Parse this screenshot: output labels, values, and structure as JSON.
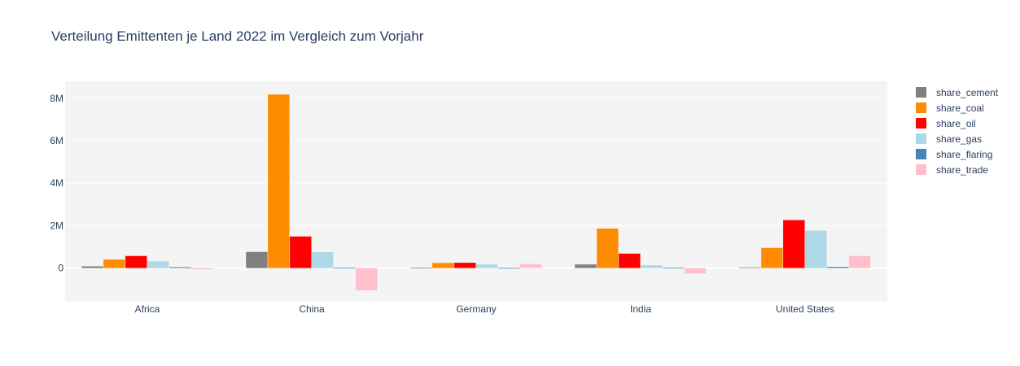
{
  "chart_data": {
    "type": "bar",
    "title": "Verteilung Emittenten je Land 2022 im Vergleich zum Vorjahr",
    "xlabel": "",
    "ylabel": "",
    "categories": [
      "Africa",
      "China",
      "Germany",
      "India",
      "United States"
    ],
    "ylim": [
      -1550000,
      8800000
    ],
    "yticks": [
      0,
      2000000,
      4000000,
      6000000,
      8000000
    ],
    "ytick_labels": [
      "0",
      "2M",
      "4M",
      "6M",
      "8M"
    ],
    "grid": true,
    "legend_position": "top-right",
    "series": [
      {
        "name": "share_cement",
        "color": "#808080",
        "values": [
          80000,
          760000,
          20000,
          170000,
          30000
        ]
      },
      {
        "name": "share_coal",
        "color": "#ff8c00",
        "values": [
          400000,
          8180000,
          240000,
          1860000,
          950000
        ]
      },
      {
        "name": "share_oil",
        "color": "#ff0000",
        "values": [
          570000,
          1490000,
          250000,
          680000,
          2260000
        ]
      },
      {
        "name": "share_gas",
        "color": "#add8e6",
        "values": [
          320000,
          750000,
          170000,
          130000,
          1760000
        ]
      },
      {
        "name": "share_flaring",
        "color": "#4682b4",
        "values": [
          40000,
          10000,
          5000,
          10000,
          50000
        ]
      },
      {
        "name": "share_trade",
        "color": "#ffc0cb",
        "values": [
          -60000,
          -1050000,
          190000,
          -260000,
          570000
        ]
      }
    ]
  }
}
